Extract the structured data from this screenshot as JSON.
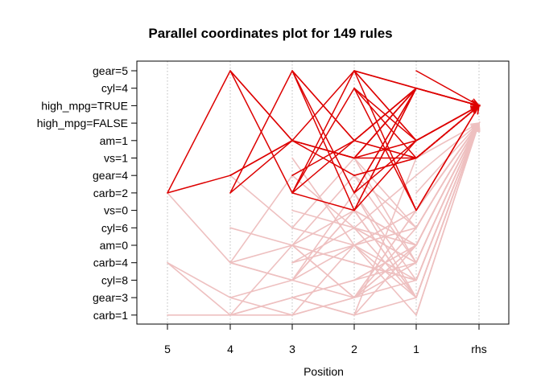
{
  "chart_data": {
    "type": "parallel-coordinates",
    "title": "Parallel coordinates plot for 149 rules",
    "xlabel": "Position",
    "ylabel": "",
    "x_categories": [
      "5",
      "4",
      "3",
      "2",
      "1",
      "rhs"
    ],
    "y_items": [
      "gear=5",
      "cyl=4",
      "high_mpg=TRUE",
      "high_mpg=FALSE",
      "am=1",
      "vs=1",
      "gear=4",
      "carb=2",
      "vs=0",
      "cyl=6",
      "am=0",
      "carb=4",
      "cyl=8",
      "gear=3",
      "carb=1"
    ],
    "grid": "vertical dotted",
    "colors": {
      "strong": "#dd0000",
      "weak": "#eec0c0"
    },
    "rules_count": 149,
    "rules": [
      {
        "path": [
          null,
          null,
          null,
          null,
          "vs=1",
          "high_mpg=TRUE"
        ],
        "strength": "strong"
      },
      {
        "path": [
          null,
          null,
          null,
          null,
          "am=1",
          "high_mpg=TRUE"
        ],
        "strength": "strong"
      },
      {
        "path": [
          null,
          null,
          null,
          null,
          "gear=5",
          "high_mpg=TRUE"
        ],
        "strength": "strong"
      },
      {
        "path": [
          null,
          null,
          null,
          null,
          "cyl=4",
          "high_mpg=TRUE"
        ],
        "strength": "strong"
      },
      {
        "path": [
          null,
          null,
          null,
          "cyl=4",
          "vs=1",
          "high_mpg=TRUE"
        ],
        "strength": "strong"
      },
      {
        "path": [
          null,
          null,
          null,
          "am=1",
          "cyl=4",
          "high_mpg=TRUE"
        ],
        "strength": "strong"
      },
      {
        "path": [
          null,
          null,
          null,
          "gear=5",
          "cyl=4",
          "high_mpg=TRUE"
        ],
        "strength": "strong"
      },
      {
        "path": [
          null,
          null,
          null,
          "gear=5",
          "am=1",
          "high_mpg=TRUE"
        ],
        "strength": "strong"
      },
      {
        "path": [
          null,
          null,
          null,
          "vs=1",
          "am=1",
          "high_mpg=TRUE"
        ],
        "strength": "strong"
      },
      {
        "path": [
          null,
          null,
          null,
          "carb=2",
          "cyl=4",
          "high_mpg=TRUE"
        ],
        "strength": "strong"
      },
      {
        "path": [
          null,
          null,
          null,
          "vs=0",
          "cyl=4",
          "high_mpg=TRUE"
        ],
        "strength": "strong"
      },
      {
        "path": [
          null,
          null,
          null,
          "carb=2",
          "am=1",
          "high_mpg=TRUE"
        ],
        "strength": "strong"
      },
      {
        "path": [
          null,
          null,
          null,
          "gear=4",
          "vs=1",
          "high_mpg=TRUE"
        ],
        "strength": "strong"
      },
      {
        "path": [
          null,
          null,
          null,
          "am=1",
          "vs=1",
          "high_mpg=TRUE"
        ],
        "strength": "strong"
      },
      {
        "path": [
          null,
          null,
          null,
          "cyl=4",
          "vs=0",
          "high_mpg=TRUE"
        ],
        "strength": "strong"
      },
      {
        "path": [
          null,
          null,
          null,
          "gear=5",
          "vs=0",
          "high_mpg=TRUE"
        ],
        "strength": "strong"
      },
      {
        "path": [
          null,
          null,
          "gear=5",
          "am=1",
          "cyl=4",
          "high_mpg=TRUE"
        ],
        "strength": "strong"
      },
      {
        "path": [
          null,
          null,
          "gear=5",
          "carb=2",
          "cyl=4",
          "high_mpg=TRUE"
        ],
        "strength": "strong"
      },
      {
        "path": [
          null,
          null,
          "gear=5",
          "vs=0",
          "am=1",
          "high_mpg=TRUE"
        ],
        "strength": "strong"
      },
      {
        "path": [
          null,
          null,
          "am=1",
          "vs=1",
          "cyl=4",
          "high_mpg=TRUE"
        ],
        "strength": "strong"
      },
      {
        "path": [
          null,
          null,
          "am=1",
          "gear=5",
          "cyl=4",
          "high_mpg=TRUE"
        ],
        "strength": "strong"
      },
      {
        "path": [
          null,
          null,
          "carb=2",
          "gear=5",
          "am=1",
          "high_mpg=TRUE"
        ],
        "strength": "strong"
      },
      {
        "path": [
          null,
          null,
          "carb=2",
          "am=1",
          "cyl=4",
          "high_mpg=TRUE"
        ],
        "strength": "strong"
      },
      {
        "path": [
          null,
          null,
          "carb=2",
          "vs=0",
          "cyl=4",
          "high_mpg=TRUE"
        ],
        "strength": "strong"
      },
      {
        "path": [
          null,
          null,
          "gear=4",
          "am=1",
          "vs=1",
          "high_mpg=TRUE"
        ],
        "strength": "strong"
      },
      {
        "path": [
          null,
          "gear=5",
          "carb=2",
          "cyl=4",
          "am=1",
          "high_mpg=TRUE"
        ],
        "strength": "strong"
      },
      {
        "path": [
          null,
          "carb=2",
          "gear=5",
          "am=1",
          "cyl=4",
          "high_mpg=TRUE"
        ],
        "strength": "strong"
      },
      {
        "path": [
          null,
          "carb=2",
          "am=1",
          "vs=1",
          "cyl=4",
          "high_mpg=TRUE"
        ],
        "strength": "strong"
      },
      {
        "path": [
          null,
          "gear=4",
          "am=1",
          "vs=1",
          "cyl=4",
          "high_mpg=TRUE"
        ],
        "strength": "strong"
      },
      {
        "path": [
          null,
          "gear=5",
          "am=1",
          "gear=4",
          "vs=1",
          "high_mpg=TRUE"
        ],
        "strength": "strong"
      },
      {
        "path": [
          "carb=2",
          "gear=5",
          "am=1",
          "vs=1",
          "cyl=4",
          "high_mpg=TRUE"
        ],
        "strength": "strong"
      },
      {
        "path": [
          "carb=2",
          "gear=4",
          "am=1",
          "vs=1",
          "vs=1",
          "high_mpg=TRUE"
        ],
        "strength": "strong"
      },
      {
        "path": [
          null,
          null,
          null,
          null,
          "cyl=8",
          "high_mpg=FALSE"
        ],
        "strength": "weak"
      },
      {
        "path": [
          null,
          null,
          null,
          null,
          "gear=3",
          "high_mpg=FALSE"
        ],
        "strength": "weak"
      },
      {
        "path": [
          null,
          null,
          null,
          null,
          "vs=0",
          "high_mpg=FALSE"
        ],
        "strength": "weak"
      },
      {
        "path": [
          null,
          null,
          null,
          null,
          "am=0",
          "high_mpg=FALSE"
        ],
        "strength": "weak"
      },
      {
        "path": [
          null,
          null,
          null,
          null,
          "carb=4",
          "high_mpg=FALSE"
        ],
        "strength": "weak"
      },
      {
        "path": [
          null,
          null,
          null,
          null,
          "cyl=6",
          "high_mpg=FALSE"
        ],
        "strength": "weak"
      },
      {
        "path": [
          null,
          null,
          null,
          null,
          "carb=2",
          "high_mpg=FALSE"
        ],
        "strength": "weak"
      },
      {
        "path": [
          null,
          null,
          null,
          null,
          "carb=1",
          "high_mpg=FALSE"
        ],
        "strength": "weak"
      },
      {
        "path": [
          null,
          null,
          null,
          "cyl=8",
          "am=0",
          "high_mpg=FALSE"
        ],
        "strength": "weak"
      },
      {
        "path": [
          null,
          null,
          null,
          "gear=3",
          "vs=0",
          "high_mpg=FALSE"
        ],
        "strength": "weak"
      },
      {
        "path": [
          null,
          null,
          null,
          "carb=4",
          "cyl=8",
          "high_mpg=FALSE"
        ],
        "strength": "weak"
      },
      {
        "path": [
          null,
          null,
          null,
          "am=0",
          "cyl=6",
          "high_mpg=FALSE"
        ],
        "strength": "weak"
      },
      {
        "path": [
          null,
          null,
          null,
          "vs=0",
          "gear=3",
          "high_mpg=FALSE"
        ],
        "strength": "weak"
      },
      {
        "path": [
          null,
          null,
          null,
          "carb=2",
          "cyl=8",
          "high_mpg=FALSE"
        ],
        "strength": "weak"
      },
      {
        "path": [
          null,
          null,
          null,
          "cyl=6",
          "carb=4",
          "high_mpg=FALSE"
        ],
        "strength": "weak"
      },
      {
        "path": [
          null,
          null,
          null,
          "carb=1",
          "am=0",
          "high_mpg=FALSE"
        ],
        "strength": "weak"
      },
      {
        "path": [
          null,
          null,
          null,
          "am=0",
          "carb=1",
          "high_mpg=FALSE"
        ],
        "strength": "weak"
      },
      {
        "path": [
          null,
          null,
          null,
          "vs=1",
          "cyl=6",
          "high_mpg=FALSE"
        ],
        "strength": "weak"
      },
      {
        "path": [
          null,
          null,
          null,
          "gear=4",
          "cyl=6",
          "high_mpg=FALSE"
        ],
        "strength": "weak"
      },
      {
        "path": [
          null,
          null,
          null,
          "cyl=6",
          "gear=3",
          "high_mpg=FALSE"
        ],
        "strength": "weak"
      },
      {
        "path": [
          null,
          null,
          null,
          "vs=0",
          "am=0",
          "high_mpg=FALSE"
        ],
        "strength": "weak"
      },
      {
        "path": [
          null,
          null,
          null,
          "gear=3",
          "carb=4",
          "high_mpg=FALSE"
        ],
        "strength": "weak"
      },
      {
        "path": [
          null,
          null,
          "am=0",
          "carb=4",
          "cyl=8",
          "high_mpg=FALSE"
        ],
        "strength": "weak"
      },
      {
        "path": [
          null,
          null,
          "cyl=8",
          "gear=3",
          "vs=0",
          "high_mpg=FALSE"
        ],
        "strength": "weak"
      },
      {
        "path": [
          null,
          null,
          "gear=3",
          "cyl=8",
          "am=0",
          "high_mpg=FALSE"
        ],
        "strength": "weak"
      },
      {
        "path": [
          null,
          null,
          "carb=4",
          "am=0",
          "cyl=8",
          "high_mpg=FALSE"
        ],
        "strength": "weak"
      },
      {
        "path": [
          null,
          null,
          "carb=1",
          "gear=3",
          "am=0",
          "high_mpg=FALSE"
        ],
        "strength": "weak"
      },
      {
        "path": [
          null,
          null,
          "vs=0",
          "cyl=6",
          "am=0",
          "high_mpg=FALSE"
        ],
        "strength": "weak"
      },
      {
        "path": [
          null,
          null,
          "cyl=6",
          "vs=1",
          "carb=4",
          "high_mpg=FALSE"
        ],
        "strength": "weak"
      },
      {
        "path": [
          null,
          null,
          "am=0",
          "vs=0",
          "gear=3",
          "high_mpg=FALSE"
        ],
        "strength": "weak"
      },
      {
        "path": [
          null,
          null,
          "carb=4",
          "cyl=6",
          "gear=4",
          "high_mpg=FALSE"
        ],
        "strength": "weak"
      },
      {
        "path": [
          null,
          null,
          "vs=1",
          "am=0",
          "cyl=6",
          "high_mpg=FALSE"
        ],
        "strength": "weak"
      },
      {
        "path": [
          null,
          null,
          "gear=3",
          "carb=1",
          "vs=1",
          "high_mpg=FALSE"
        ],
        "strength": "weak"
      },
      {
        "path": [
          null,
          null,
          "cyl=8",
          "carb=2",
          "gear=3",
          "high_mpg=FALSE"
        ],
        "strength": "weak"
      },
      {
        "path": [
          null,
          null,
          "am=0",
          "gear=4",
          "carb=4",
          "high_mpg=FALSE"
        ],
        "strength": "weak"
      },
      {
        "path": [
          null,
          "cyl=6",
          "am=0",
          "carb=4",
          "cyl=8",
          "high_mpg=FALSE"
        ],
        "strength": "weak"
      },
      {
        "path": [
          null,
          "carb=4",
          "cyl=8",
          "vs=0",
          "am=0",
          "high_mpg=FALSE"
        ],
        "strength": "weak"
      },
      {
        "path": [
          null,
          "gear=3",
          "carb=1",
          "am=0",
          "vs=0",
          "high_mpg=FALSE"
        ],
        "strength": "weak"
      },
      {
        "path": [
          null,
          "carb=1",
          "gear=3",
          "cyl=8",
          "carb=4",
          "high_mpg=FALSE"
        ],
        "strength": "weak"
      },
      {
        "path": [
          null,
          "carb=4",
          "am=0",
          "gear=3",
          "cyl=6",
          "high_mpg=FALSE"
        ],
        "strength": "weak"
      },
      {
        "path": [
          null,
          "gear=4",
          "cyl=6",
          "am=0",
          "gear=3",
          "high_mpg=FALSE"
        ],
        "strength": "weak"
      },
      {
        "path": [
          null,
          "carb=1",
          "carb=1",
          "gear=3",
          "am=0",
          "high_mpg=FALSE"
        ],
        "strength": "weak"
      },
      {
        "path": [
          null,
          "carb=4",
          "gear=4",
          "cyl=6",
          "carb=4",
          "high_mpg=FALSE"
        ],
        "strength": "weak"
      },
      {
        "path": [
          "carb=4",
          "gear=3",
          "cyl=8",
          "am=0",
          "vs=0",
          "high_mpg=FALSE"
        ],
        "strength": "weak"
      },
      {
        "path": [
          "carb=1",
          "carb=1",
          "am=0",
          "gear=3",
          "cyl=8",
          "high_mpg=FALSE"
        ],
        "strength": "weak"
      },
      {
        "path": [
          "carb=4",
          "carb=1",
          "gear=3",
          "carb=1",
          "gear=3",
          "high_mpg=FALSE"
        ],
        "strength": "weak"
      },
      {
        "path": [
          "carb=2",
          "carb=4",
          "cyl=8",
          "vs=0",
          "am=0",
          "high_mpg=FALSE"
        ],
        "strength": "weak"
      }
    ]
  }
}
